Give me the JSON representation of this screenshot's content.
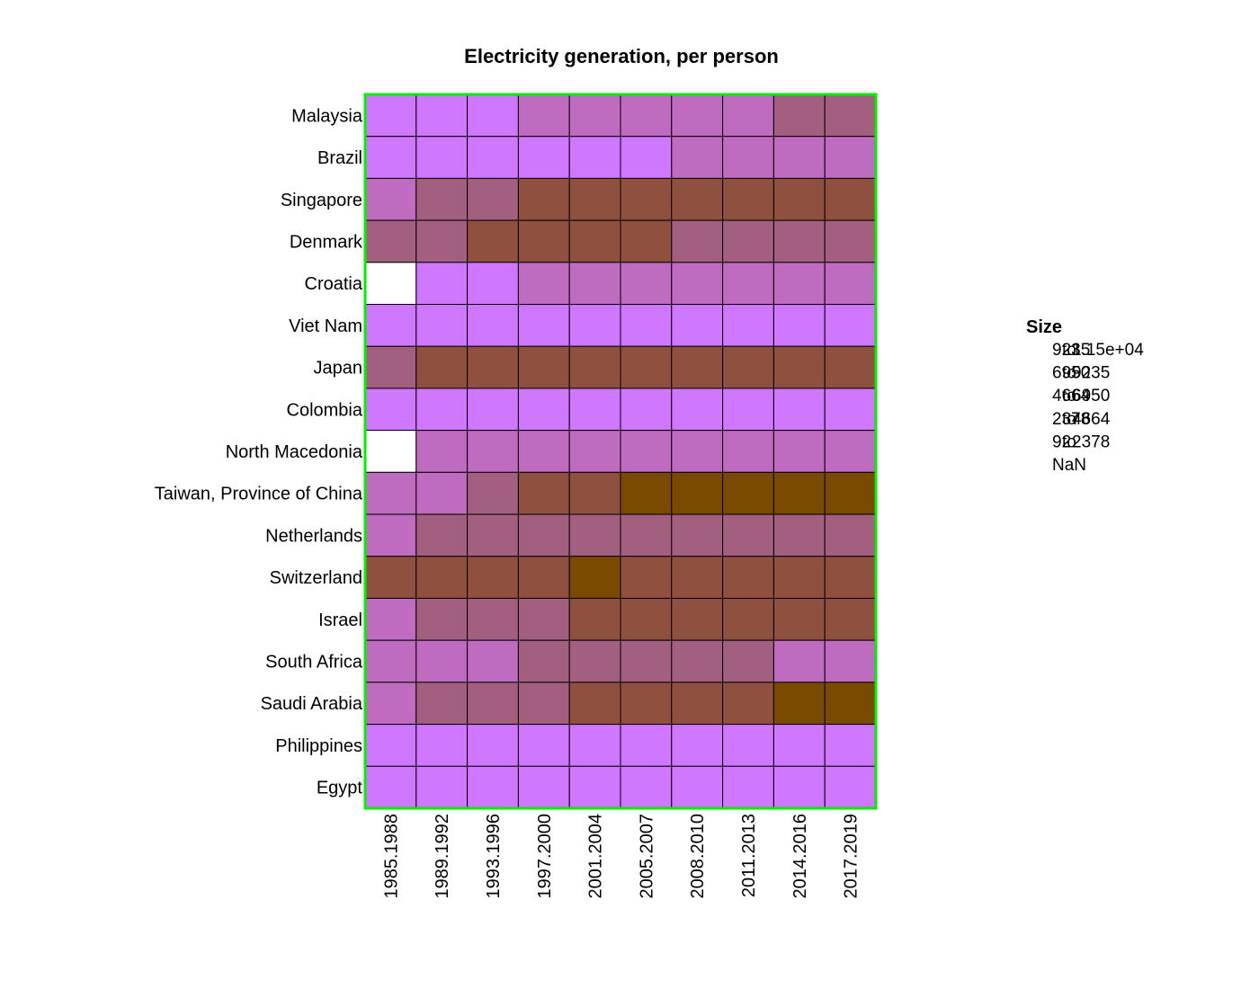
{
  "chart_data": {
    "type": "heatmap",
    "title": "Electricity generation, per person",
    "rows": [
      "Malaysia",
      "Brazil",
      "Singapore",
      "Denmark",
      "Croatia",
      "Viet Nam",
      "Japan",
      "Colombia",
      "North Macedonia",
      "Taiwan, Province of China",
      "Netherlands",
      "Switzerland",
      "Israel",
      "South Africa",
      "Saudi Arabia",
      "Philippines",
      "Egypt"
    ],
    "columns": [
      "1985.1988",
      "1989.1992",
      "1993.1996",
      "1997.2000",
      "2001.2004",
      "2005.2007",
      "2008.2010",
      "2011.2013",
      "2014.2016",
      "2017.2019"
    ],
    "bin_labels": [
      "92 to 2378",
      "2378 to 4664",
      "4664 to 6950",
      "6950 to 9235",
      "9235 to 1.15e+04",
      "NaN"
    ],
    "bin_colors": [
      "#cf77ff",
      "#bf6bc0",
      "#a35f80",
      "#8f5040",
      "#7a4a00",
      "#ffffff"
    ],
    "values": [
      [
        0,
        0,
        0,
        1,
        1,
        1,
        1,
        1,
        2,
        2
      ],
      [
        0,
        0,
        0,
        0,
        0,
        0,
        1,
        1,
        1,
        1
      ],
      [
        1,
        2,
        2,
        3,
        3,
        3,
        3,
        3,
        3,
        3
      ],
      [
        2,
        2,
        3,
        3,
        3,
        3,
        2,
        2,
        2,
        2
      ],
      [
        5,
        0,
        0,
        1,
        1,
        1,
        1,
        1,
        1,
        1
      ],
      [
        0,
        0,
        0,
        0,
        0,
        0,
        0,
        0,
        0,
        0
      ],
      [
        2,
        3,
        3,
        3,
        3,
        3,
        3,
        3,
        3,
        3
      ],
      [
        0,
        0,
        0,
        0,
        0,
        0,
        0,
        0,
        0,
        0
      ],
      [
        5,
        1,
        1,
        1,
        1,
        1,
        1,
        1,
        1,
        1
      ],
      [
        1,
        1,
        2,
        3,
        3,
        4,
        4,
        4,
        4,
        4
      ],
      [
        1,
        2,
        2,
        2,
        2,
        2,
        2,
        2,
        2,
        2
      ],
      [
        3,
        3,
        3,
        3,
        4,
        3,
        3,
        3,
        3,
        3
      ],
      [
        1,
        2,
        2,
        2,
        3,
        3,
        3,
        3,
        3,
        3
      ],
      [
        1,
        1,
        1,
        2,
        2,
        2,
        2,
        2,
        1,
        1
      ],
      [
        1,
        2,
        2,
        2,
        3,
        3,
        3,
        3,
        4,
        4
      ],
      [
        0,
        0,
        0,
        0,
        0,
        0,
        0,
        0,
        0,
        0
      ],
      [
        0,
        0,
        0,
        0,
        0,
        0,
        0,
        0,
        0,
        0
      ]
    ],
    "legend": {
      "title": "Size",
      "entries": [
        {
          "from": "9235",
          "to": "1.15e+04"
        },
        {
          "from": "6950",
          "to": "9235"
        },
        {
          "from": "4664",
          "to": "6950"
        },
        {
          "from": "2378",
          "to": "4664"
        },
        {
          "from": "92",
          "to": "2378"
        },
        {
          "from": "NaN",
          "to": ""
        }
      ],
      "separator": "to",
      "placement": "right"
    },
    "frame_color": "#00ee00"
  }
}
